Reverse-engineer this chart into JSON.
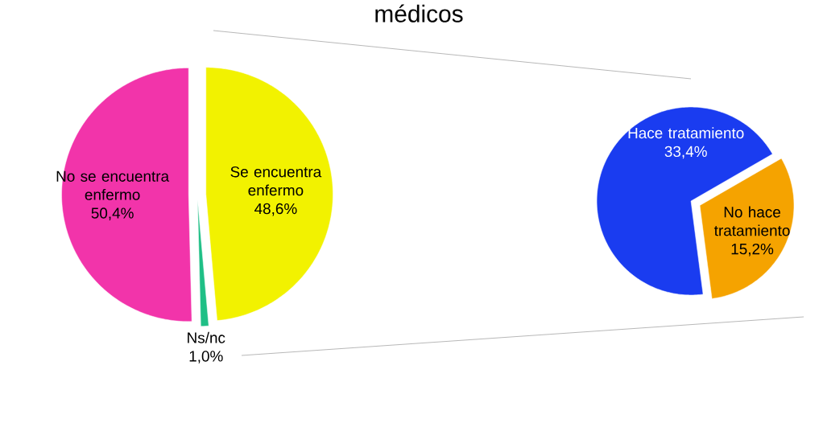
{
  "chart_data": [
    {
      "type": "pie",
      "title": "médicos",
      "categories": [
        "Se encuentra enfermo",
        "Ns/nc",
        "No se encuentra enfermo"
      ],
      "values": [
        48.6,
        1.0,
        50.4
      ],
      "value_labels": [
        "48,6%",
        "1,0%",
        "50,4%"
      ],
      "colors": [
        "#f2f200",
        "#1fbf86",
        "#f234aa"
      ]
    },
    {
      "type": "pie",
      "categories": [
        "No hace tratamiento",
        "Hace tratamiento"
      ],
      "values": [
        15.2,
        33.4
      ],
      "value_labels": [
        "15,2%",
        "33,4%"
      ],
      "colors": [
        "#f5a300",
        "#1a3cf0"
      ]
    }
  ]
}
